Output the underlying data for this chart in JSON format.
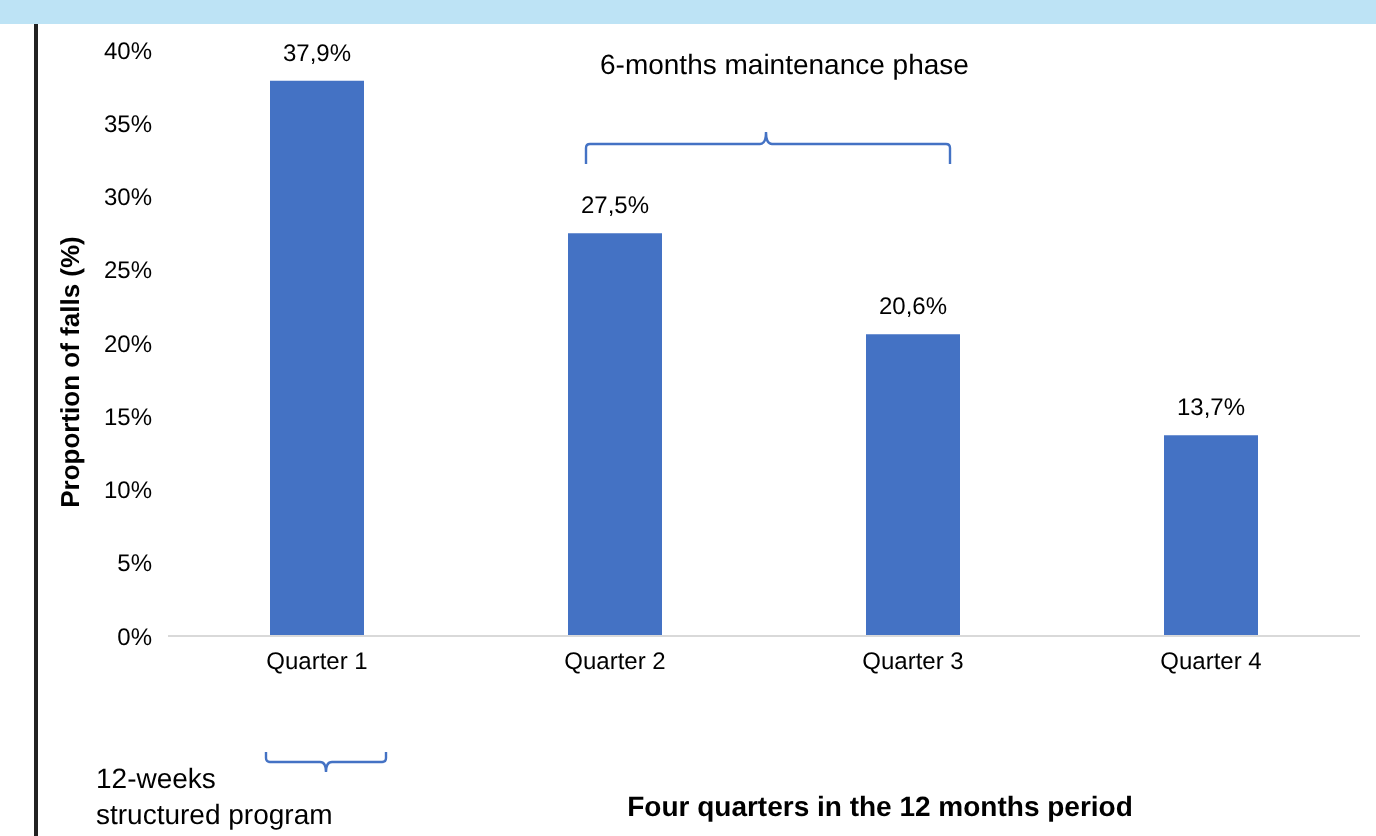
{
  "chart_data": {
    "type": "bar",
    "xlabel": "Four quarters in the 12 months period",
    "ylabel": "Proportion of falls (%)",
    "categories": [
      "Quarter 1",
      "Quarter 2",
      "Quarter 3",
      "Quarter 4"
    ],
    "values": [
      37.9,
      27.5,
      20.6,
      13.7
    ],
    "value_labels": [
      "37,9%",
      "27,5%",
      "20,6%",
      "13,7%"
    ],
    "color": "#4472c4",
    "ylim": [
      0,
      40
    ],
    "yticks": [
      {
        "value": 0,
        "label": "0%"
      },
      {
        "value": 5,
        "label": "5%"
      },
      {
        "value": 10,
        "label": "10%"
      },
      {
        "value": 15,
        "label": "15%"
      },
      {
        "value": 20,
        "label": "20%"
      },
      {
        "value": 25,
        "label": "25%"
      },
      {
        "value": 30,
        "label": "30%"
      },
      {
        "value": 35,
        "label": "35%"
      },
      {
        "value": 40,
        "label": "40%"
      }
    ],
    "grid": false,
    "annotations": [
      "6-months maintenance phase",
      "12-weeks structured program"
    ]
  }
}
